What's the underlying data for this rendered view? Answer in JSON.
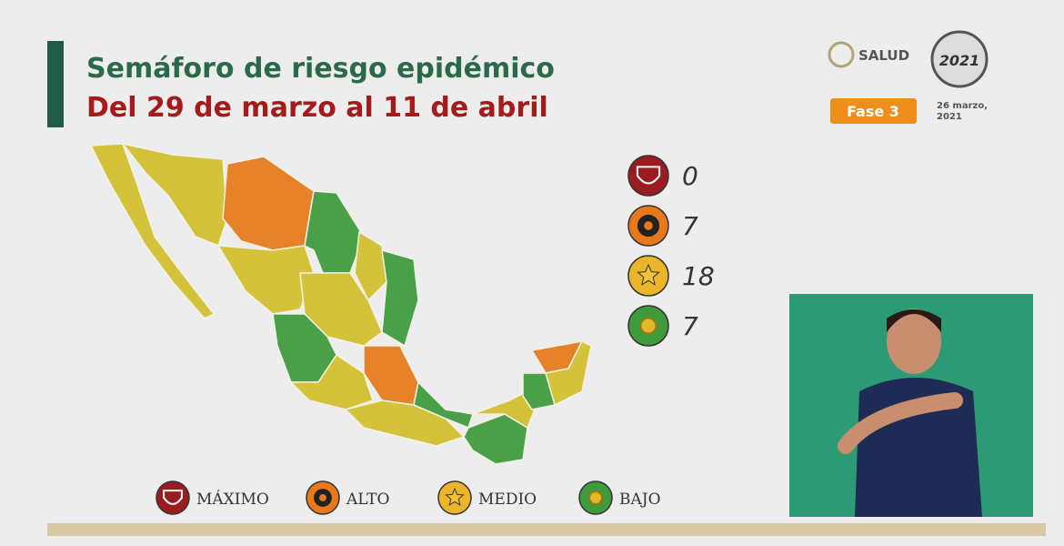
{
  "header": {
    "title": "Semáforo de riesgo epidémico",
    "subtitle": "Del 29 de marzo al 11 de abril"
  },
  "logo": {
    "agency": "SALUD",
    "year": "2021"
  },
  "phase": "Fase 3",
  "date": [
    "26 marzo,",
    "2021"
  ],
  "levels": [
    {
      "name": "MÁXIMO",
      "count": 0,
      "color": "#9b1c1f"
    },
    {
      "name": "ALTO",
      "count": 7,
      "color": "#e8781c"
    },
    {
      "name": "MEDIO",
      "count": 18,
      "color": "#eab52a"
    },
    {
      "name": "BAJO",
      "count": 7,
      "color": "#3f9a3c"
    }
  ]
}
